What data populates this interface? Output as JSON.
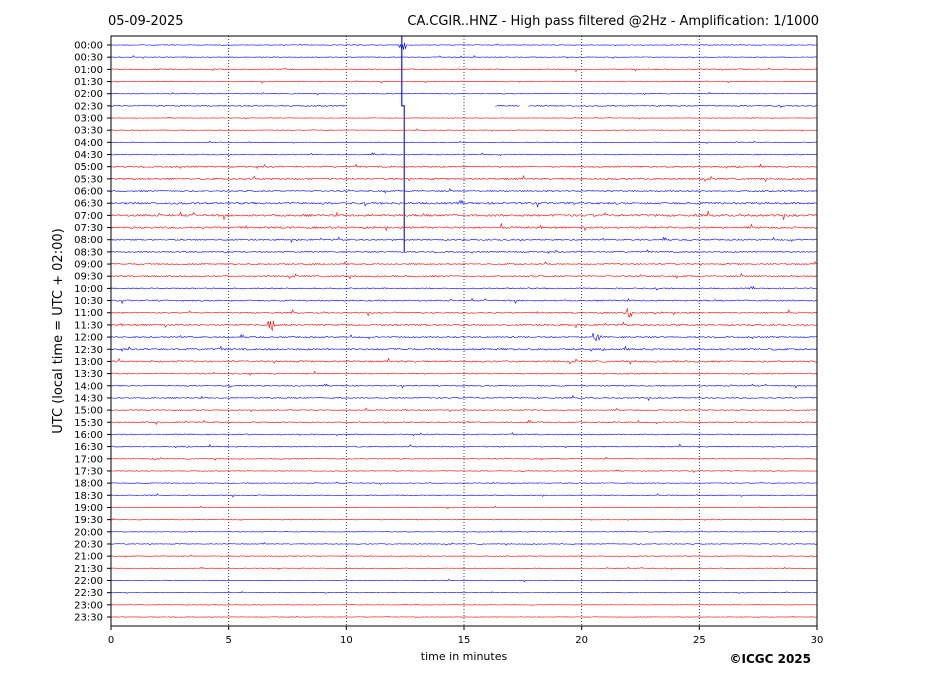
{
  "header": {
    "date": "05-09-2025",
    "title": "CA.CGIR..HNZ - High pass filtered @2Hz - Amplification: 1/1000"
  },
  "copyright": "©ICGC 2025",
  "colors": {
    "red": "#ff0000",
    "blue": "#0000ff",
    "grid": "#000080"
  },
  "chart_data": {
    "type": "line",
    "title": "CA.CGIR..HNZ - High pass filtered @2Hz - Amplification: 1/1000",
    "xlabel": "time in minutes",
    "ylabel": "UTC (local time = UTC + 02:00)",
    "xlim": [
      0,
      30
    ],
    "xticks": [
      "0",
      "5",
      "10",
      "15",
      "20",
      "25",
      "30"
    ],
    "grid": "vertical dotted lines at 5-minute intervals",
    "trace_labels": [
      "00:00",
      "00:30",
      "01:00",
      "01:30",
      "02:00",
      "02:30",
      "03:00",
      "03:30",
      "04:00",
      "04:30",
      "05:00",
      "05:30",
      "06:00",
      "06:30",
      "07:00",
      "07:30",
      "08:00",
      "08:30",
      "09:00",
      "09:30",
      "10:00",
      "10:30",
      "11:00",
      "11:30",
      "12:00",
      "12:30",
      "13:00",
      "13:30",
      "14:00",
      "14:30",
      "15:00",
      "15:30",
      "16:00",
      "16:30",
      "17:00",
      "17:30",
      "18:00",
      "18:30",
      "19:00",
      "19:30",
      "20:00",
      "20:30",
      "21:00",
      "21:30",
      "22:00",
      "22:30",
      "23:00",
      "23:30"
    ],
    "trace_colors": "alternating blue and red by row pairs",
    "noise_levels": [
      0.5,
      0.6,
      0.9,
      0.7,
      0.6,
      1.0,
      0.4,
      0.5,
      0.5,
      0.8,
      1.2,
      1.3,
      1.1,
      1.6,
      1.7,
      1.5,
      1.1,
      1.0,
      1.0,
      1.2,
      1.0,
      1.1,
      1.1,
      1.2,
      1.1,
      1.4,
      1.3,
      1.0,
      0.9,
      0.9,
      0.8,
      0.9,
      0.9,
      0.9,
      0.7,
      0.6,
      0.6,
      0.6,
      0.5,
      0.5,
      0.5,
      0.6,
      0.6,
      0.5,
      0.5,
      0.4,
      0.4,
      0.4
    ],
    "events": [
      {
        "trace": "00:00",
        "minute": 12.4,
        "description": "large spike at 00:00 trace"
      },
      {
        "trace": "11:00",
        "minute": 22.0,
        "description": "small event"
      },
      {
        "trace": "11:30",
        "minute": 6.8,
        "description": "small event"
      },
      {
        "trace": "12:00",
        "minute": 20.6,
        "description": "small event"
      }
    ],
    "gaps": [
      {
        "trace": "02:30",
        "from_minute": 10.0,
        "to_minute": 16.3
      },
      {
        "trace": "02:30",
        "from_minute": 17.4,
        "to_minute": 17.7
      }
    ]
  }
}
